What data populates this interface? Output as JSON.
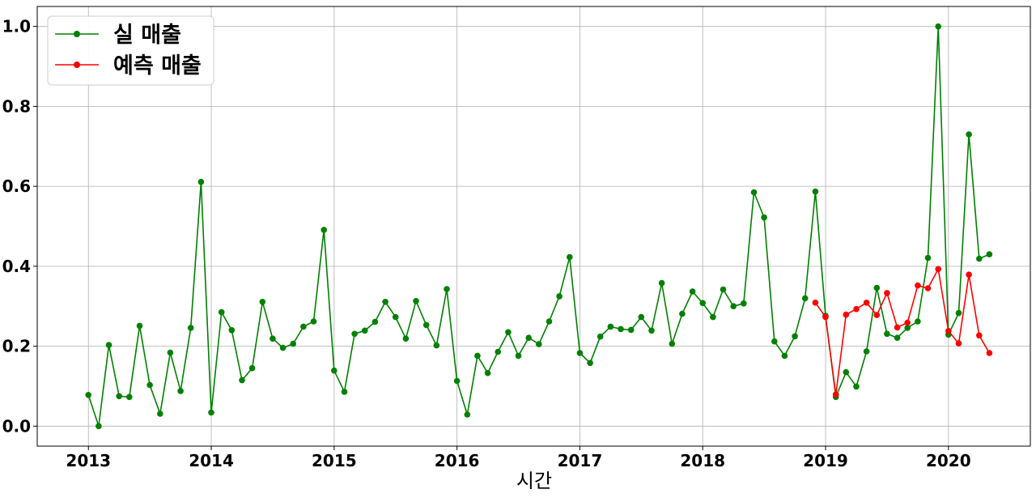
{
  "chart_data": {
    "type": "line",
    "xlabel": "시간",
    "ylabel": "",
    "xlim": [
      "2012-08",
      "2020-09"
    ],
    "ylim": [
      -0.05,
      1.05
    ],
    "x_ticks": [
      "2013",
      "2014",
      "2015",
      "2016",
      "2017",
      "2018",
      "2019",
      "2020"
    ],
    "y_ticks": [
      "0.0",
      "0.2",
      "0.4",
      "0.6",
      "0.8",
      "1.0"
    ],
    "grid": true,
    "legend_position": "top-left",
    "series": [
      {
        "name": "실 매출",
        "color": "#008000",
        "marker": "circle",
        "x": [
          "2013-01",
          "2013-02",
          "2013-03",
          "2013-04",
          "2013-05",
          "2013-06",
          "2013-07",
          "2013-08",
          "2013-09",
          "2013-10",
          "2013-11",
          "2013-12",
          "2014-01",
          "2014-02",
          "2014-03",
          "2014-04",
          "2014-05",
          "2014-06",
          "2014-07",
          "2014-08",
          "2014-09",
          "2014-10",
          "2014-11",
          "2014-12",
          "2015-01",
          "2015-02",
          "2015-03",
          "2015-04",
          "2015-05",
          "2015-06",
          "2015-07",
          "2015-08",
          "2015-09",
          "2015-10",
          "2015-11",
          "2015-12",
          "2016-01",
          "2016-02",
          "2016-03",
          "2016-04",
          "2016-05",
          "2016-06",
          "2016-07",
          "2016-08",
          "2016-09",
          "2016-10",
          "2016-11",
          "2016-12",
          "2017-01",
          "2017-02",
          "2017-03",
          "2017-04",
          "2017-05",
          "2017-06",
          "2017-07",
          "2017-08",
          "2017-09",
          "2017-10",
          "2017-11",
          "2017-12",
          "2018-01",
          "2018-02",
          "2018-03",
          "2018-04",
          "2018-05",
          "2018-06",
          "2018-07",
          "2018-08",
          "2018-09",
          "2018-10",
          "2018-11",
          "2018-12",
          "2019-01",
          "2019-02",
          "2019-03",
          "2019-04",
          "2019-05",
          "2019-06",
          "2019-07",
          "2019-08",
          "2019-09",
          "2019-10",
          "2019-11",
          "2019-12",
          "2020-01",
          "2020-02",
          "2020-03",
          "2020-04",
          "2020-05"
        ],
        "values": [
          0.078,
          0.0,
          0.203,
          0.075,
          0.073,
          0.251,
          0.103,
          0.031,
          0.184,
          0.088,
          0.246,
          0.611,
          0.034,
          0.285,
          0.24,
          0.115,
          0.145,
          0.311,
          0.219,
          0.196,
          0.206,
          0.249,
          0.262,
          0.491,
          0.139,
          0.086,
          0.231,
          0.239,
          0.261,
          0.311,
          0.273,
          0.219,
          0.313,
          0.253,
          0.202,
          0.343,
          0.113,
          0.029,
          0.176,
          0.133,
          0.186,
          0.235,
          0.176,
          0.221,
          0.205,
          0.262,
          0.325,
          0.423,
          0.183,
          0.158,
          0.224,
          0.249,
          0.243,
          0.241,
          0.273,
          0.239,
          0.358,
          0.206,
          0.281,
          0.337,
          0.308,
          0.273,
          0.342,
          0.3,
          0.307,
          0.585,
          0.522,
          0.212,
          0.176,
          0.225,
          0.32,
          0.587,
          0.276,
          0.073,
          0.135,
          0.099,
          0.187,
          0.346,
          0.231,
          0.221,
          0.246,
          0.262,
          0.421,
          1.0,
          0.229,
          0.283,
          0.73,
          0.419,
          0.43
        ]
      },
      {
        "name": "예측 매출",
        "color": "#ff0000",
        "marker": "circle",
        "x": [
          "2018-12",
          "2019-01",
          "2019-02",
          "2019-03",
          "2019-04",
          "2019-05",
          "2019-06",
          "2019-07",
          "2019-08",
          "2019-09",
          "2019-10",
          "2019-11",
          "2019-12",
          "2020-01",
          "2020-02",
          "2020-03",
          "2020-04",
          "2020-05"
        ],
        "values": [
          0.309,
          0.273,
          0.079,
          0.279,
          0.293,
          0.309,
          0.278,
          0.333,
          0.247,
          0.259,
          0.352,
          0.345,
          0.393,
          0.238,
          0.207,
          0.379,
          0.227,
          0.183
        ]
      }
    ]
  }
}
